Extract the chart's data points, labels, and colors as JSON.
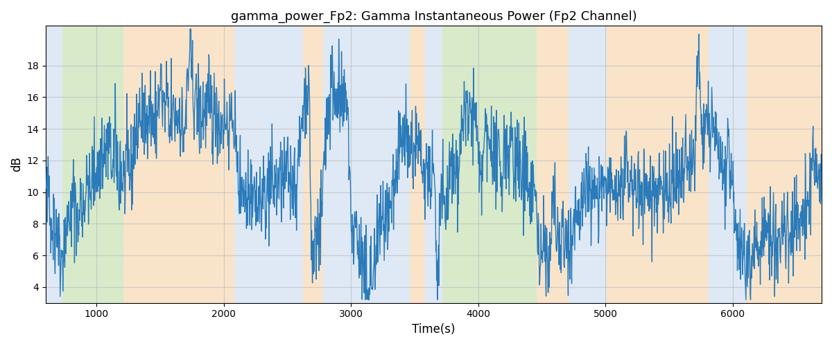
{
  "title": "gamma_power_Fp2: Gamma Instantaneous Power (Fp2 Channel)",
  "xlabel": "Time(s)",
  "ylabel": "dB",
  "xlim": [
    600,
    6700
  ],
  "ylim": [
    3.0,
    20.5
  ],
  "yticks": [
    4,
    6,
    8,
    10,
    12,
    14,
    16,
    18
  ],
  "xticks": [
    1000,
    2000,
    3000,
    4000,
    5000,
    6000
  ],
  "line_color": "#2b7bba",
  "line_width": 1.0,
  "grid_color": "#bbbbbb",
  "grid_alpha": 0.7,
  "regions": [
    {
      "start": 600,
      "end": 730,
      "color": "#c6d8ee",
      "alpha": 0.55
    },
    {
      "start": 730,
      "end": 1210,
      "color": "#b8d9a0",
      "alpha": 0.55
    },
    {
      "start": 1210,
      "end": 2080,
      "color": "#f5cfa0",
      "alpha": 0.55
    },
    {
      "start": 2080,
      "end": 2620,
      "color": "#c6d8ee",
      "alpha": 0.55
    },
    {
      "start": 2620,
      "end": 2780,
      "color": "#f5cfa0",
      "alpha": 0.55
    },
    {
      "start": 2780,
      "end": 3460,
      "color": "#c6d8ee",
      "alpha": 0.55
    },
    {
      "start": 3460,
      "end": 3580,
      "color": "#f5cfa0",
      "alpha": 0.55
    },
    {
      "start": 3580,
      "end": 3720,
      "color": "#c6d8ee",
      "alpha": 0.55
    },
    {
      "start": 3720,
      "end": 4460,
      "color": "#b8d9a0",
      "alpha": 0.55
    },
    {
      "start": 4460,
      "end": 4710,
      "color": "#f5cfa0",
      "alpha": 0.55
    },
    {
      "start": 4710,
      "end": 5010,
      "color": "#c6d8ee",
      "alpha": 0.55
    },
    {
      "start": 5010,
      "end": 5810,
      "color": "#f5cfa0",
      "alpha": 0.55
    },
    {
      "start": 5810,
      "end": 6110,
      "color": "#c6d8ee",
      "alpha": 0.55
    },
    {
      "start": 6110,
      "end": 6700,
      "color": "#f5cfa0",
      "alpha": 0.55
    }
  ],
  "figsize": [
    12.0,
    5.0
  ],
  "dpi": 100
}
